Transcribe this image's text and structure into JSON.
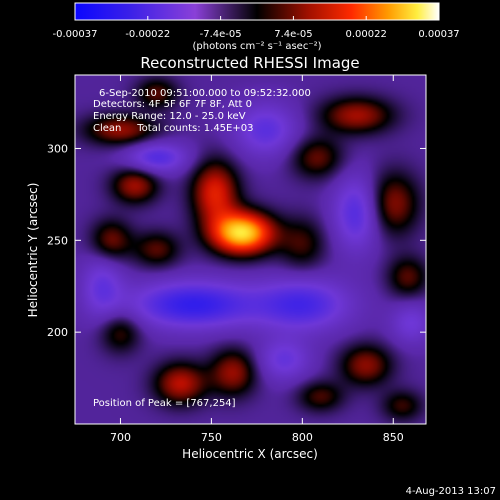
{
  "chart_data": {
    "type": "heatmap",
    "title": "Reconstructed RHESSI Image",
    "xlabel": "Heliocentric X (arcsec)",
    "ylabel": "Heliocentric Y (arcsec)",
    "xlim": [
      675,
      868
    ],
    "ylim": [
      150,
      340
    ],
    "x_ticks": [
      700,
      750,
      800,
      850
    ],
    "y_ticks": [
      200,
      250,
      300
    ],
    "colorbar": {
      "range": [
        -0.00037,
        0.00037
      ],
      "ticks": [
        "-0.00037",
        "-0.00022",
        "-7.4e-05",
        "7.4e-05",
        "0.00022",
        "0.00037"
      ],
      "label": "(photons cm⁻² s⁻¹ asec⁻²)"
    },
    "annotations": [
      "6-Sep-2010 09:51:00.000 to 09:52:32.000",
      "Detectors: 4F 5F 6F 7F 8F, Att 0",
      "Energy Range: 12.0 - 25.0 keV",
      "Clean     Total counts: 1.45E+03"
    ],
    "peak_label": "Position of Peak = [767,254]",
    "peak": [
      767,
      254
    ],
    "blobs": [
      {
        "x": 767,
        "y": 254,
        "sx": 12,
        "sy": 8,
        "amp": 1.0
      },
      {
        "x": 752,
        "y": 276,
        "sx": 9,
        "sy": 12,
        "amp": 0.55
      },
      {
        "x": 708,
        "y": 280,
        "sx": 9,
        "sy": 7,
        "amp": 0.42
      },
      {
        "x": 700,
        "y": 310,
        "sx": 14,
        "sy": 6,
        "amp": 0.4
      },
      {
        "x": 695,
        "y": 250,
        "sx": 8,
        "sy": 8,
        "amp": 0.34
      },
      {
        "x": 720,
        "y": 245,
        "sx": 9,
        "sy": 7,
        "amp": 0.3
      },
      {
        "x": 733,
        "y": 172,
        "sx": 10,
        "sy": 8,
        "amp": 0.46
      },
      {
        "x": 762,
        "y": 178,
        "sx": 9,
        "sy": 9,
        "amp": 0.4
      },
      {
        "x": 700,
        "y": 200,
        "sx": 8,
        "sy": 8,
        "amp": 0.28
      },
      {
        "x": 800,
        "y": 248,
        "sx": 9,
        "sy": 10,
        "amp": 0.26
      },
      {
        "x": 808,
        "y": 295,
        "sx": 10,
        "sy": 8,
        "amp": 0.32
      },
      {
        "x": 830,
        "y": 318,
        "sx": 14,
        "sy": 7,
        "amp": 0.42
      },
      {
        "x": 850,
        "y": 270,
        "sx": 10,
        "sy": 12,
        "amp": 0.38
      },
      {
        "x": 858,
        "y": 230,
        "sx": 8,
        "sy": 8,
        "amp": 0.3
      },
      {
        "x": 835,
        "y": 182,
        "sx": 10,
        "sy": 8,
        "amp": 0.38
      },
      {
        "x": 810,
        "y": 165,
        "sx": 9,
        "sy": 6,
        "amp": 0.28
      },
      {
        "x": 855,
        "y": 160,
        "sx": 8,
        "sy": 6,
        "amp": 0.26
      },
      {
        "x": 720,
        "y": 330,
        "sx": 8,
        "sy": 6,
        "amp": 0.3
      },
      {
        "x": 740,
        "y": 215,
        "sx": 24,
        "sy": 9,
        "amp": -0.55
      },
      {
        "x": 800,
        "y": 215,
        "sx": 18,
        "sy": 10,
        "amp": -0.45
      },
      {
        "x": 720,
        "y": 295,
        "sx": 12,
        "sy": 6,
        "amp": -0.4
      },
      {
        "x": 830,
        "y": 265,
        "sx": 9,
        "sy": 14,
        "amp": -0.4
      },
      {
        "x": 780,
        "y": 310,
        "sx": 12,
        "sy": 10,
        "amp": -0.35
      },
      {
        "x": 690,
        "y": 225,
        "sx": 8,
        "sy": 12,
        "amp": -0.3
      },
      {
        "x": 790,
        "y": 185,
        "sx": 10,
        "sy": 8,
        "amp": -0.3
      },
      {
        "x": 860,
        "y": 205,
        "sx": 8,
        "sy": 8,
        "amp": -0.25
      }
    ]
  },
  "footer": {
    "date": "4-Aug-2013 13:07"
  }
}
